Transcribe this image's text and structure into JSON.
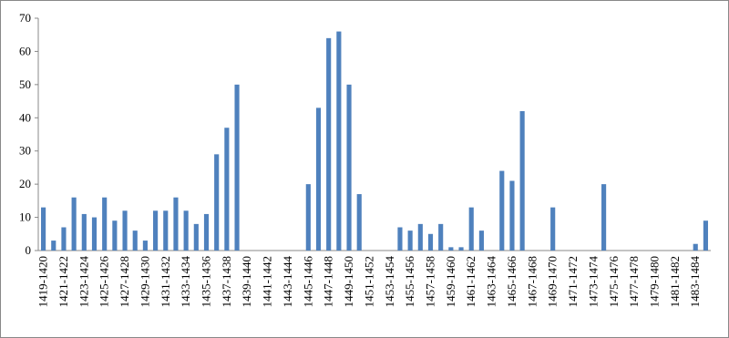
{
  "chart_data": {
    "type": "bar",
    "categories": [
      "1419-1420",
      null,
      "1421-1422",
      null,
      "1423-1424",
      null,
      "1425-1426",
      null,
      "1427-1428",
      null,
      "1429-1430",
      null,
      "1431-1432",
      null,
      "1433-1434",
      null,
      "1435-1436",
      null,
      "1437-1438",
      null,
      "1439-1440",
      null,
      "1441-1442",
      null,
      "1443-1444",
      null,
      "1445-1446",
      null,
      "1447-1448",
      null,
      "1449-1450",
      null,
      "1451-1452",
      null,
      "1453-1454",
      null,
      "1455-1456",
      null,
      "1457-1458",
      null,
      "1459-1460",
      null,
      "1461-1462",
      null,
      "1463-1464",
      null,
      "1465-1466",
      null,
      "1467-1468",
      null,
      "1469-1470",
      null,
      "1471-1472",
      null,
      "1473-1474",
      null,
      "1475-1476",
      null,
      "1477-1478",
      null,
      "1479-1480",
      null,
      "1481-1482",
      null,
      "1483-1484",
      null
    ],
    "values": [
      13,
      3,
      7,
      16,
      11,
      10,
      16,
      9,
      12,
      6,
      3,
      12,
      12,
      16,
      12,
      8,
      11,
      29,
      37,
      50,
      0,
      0,
      0,
      0,
      0,
      0,
      20,
      43,
      64,
      66,
      50,
      17,
      0,
      0,
      0,
      7,
      6,
      8,
      5,
      8,
      1,
      1,
      13,
      6,
      0,
      24,
      21,
      42,
      0,
      0,
      13,
      0,
      0,
      0,
      0,
      20,
      0,
      0,
      0,
      0,
      0,
      0,
      0,
      0,
      2,
      9
    ],
    "color": "#4f81bd",
    "ylim": [
      0,
      70
    ],
    "yticks": [
      0,
      10,
      20,
      30,
      40,
      50,
      60,
      70
    ],
    "grid": false
  }
}
